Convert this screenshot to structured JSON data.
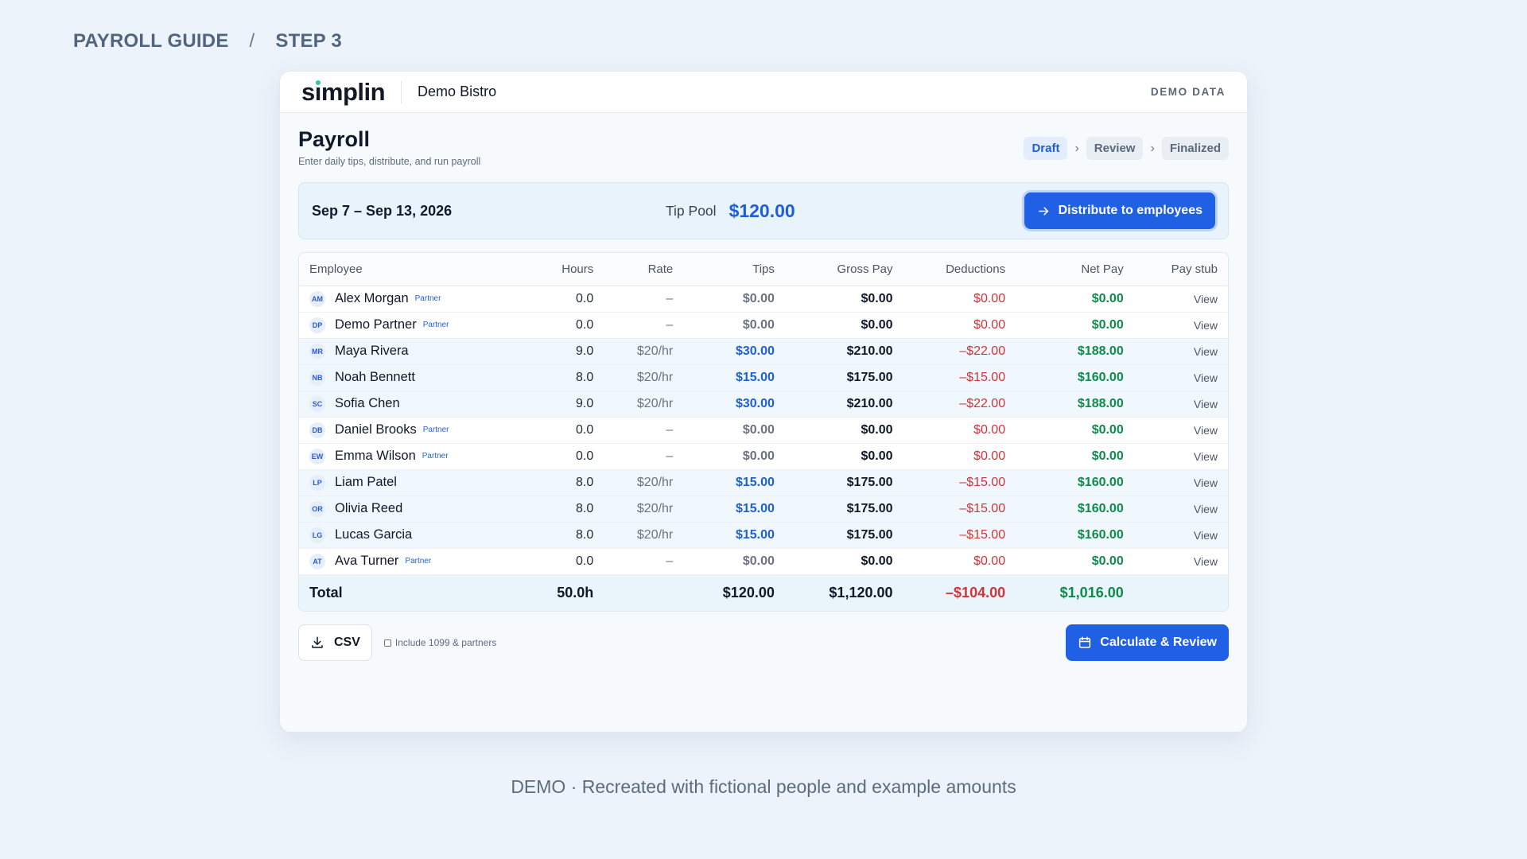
{
  "guide": {
    "label": "PAYROLL GUIDE",
    "separator": "/",
    "step": "STEP 3"
  },
  "topbar": {
    "logo": "simplin",
    "business": "Demo Bistro",
    "tag": "DEMO DATA"
  },
  "page": {
    "title": "Payroll",
    "subtitle": "Enter daily tips, distribute, and run payroll"
  },
  "steps": [
    {
      "label": "Draft",
      "active": true
    },
    {
      "label": "Review",
      "active": false
    },
    {
      "label": "Finalized",
      "active": false
    }
  ],
  "summary": {
    "period": "Sep 7 – Sep 13, 2026",
    "tip_pool_label": "Tip Pool",
    "tip_pool_amount": "$120.00",
    "distribute_label": "Distribute to employees"
  },
  "table": {
    "headers": {
      "employee": "Employee",
      "hours": "Hours",
      "rate": "Rate",
      "tips": "Tips",
      "gross": "Gross Pay",
      "deductions": "Deductions",
      "net": "Net Pay",
      "stub": "Pay stub"
    },
    "rows": [
      {
        "initials": "AM",
        "name": "Alex Morgan",
        "partner": "Partner",
        "hours": "0.0",
        "rate": "–",
        "tips": "$0.00",
        "gross": "$0.00",
        "deductions": "$0.00",
        "net": "$0.00",
        "stub": "View"
      },
      {
        "initials": "DP",
        "name": "Demo Partner",
        "partner": "Partner",
        "hours": "0.0",
        "rate": "–",
        "tips": "$0.00",
        "gross": "$0.00",
        "deductions": "$0.00",
        "net": "$0.00",
        "stub": "View"
      },
      {
        "initials": "MR",
        "name": "Maya Rivera",
        "partner": "",
        "hours": "9.0",
        "rate": "$20/hr",
        "tips": "$30.00",
        "gross": "$210.00",
        "deductions": "–$22.00",
        "net": "$188.00",
        "stub": "View"
      },
      {
        "initials": "NB",
        "name": "Noah Bennett",
        "partner": "",
        "hours": "8.0",
        "rate": "$20/hr",
        "tips": "$15.00",
        "gross": "$175.00",
        "deductions": "–$15.00",
        "net": "$160.00",
        "stub": "View"
      },
      {
        "initials": "SC",
        "name": "Sofia Chen",
        "partner": "",
        "hours": "9.0",
        "rate": "$20/hr",
        "tips": "$30.00",
        "gross": "$210.00",
        "deductions": "–$22.00",
        "net": "$188.00",
        "stub": "View"
      },
      {
        "initials": "DB",
        "name": "Daniel Brooks",
        "partner": "Partner",
        "hours": "0.0",
        "rate": "–",
        "tips": "$0.00",
        "gross": "$0.00",
        "deductions": "$0.00",
        "net": "$0.00",
        "stub": "View"
      },
      {
        "initials": "EW",
        "name": "Emma Wilson",
        "partner": "Partner",
        "hours": "0.0",
        "rate": "–",
        "tips": "$0.00",
        "gross": "$0.00",
        "deductions": "$0.00",
        "net": "$0.00",
        "stub": "View"
      },
      {
        "initials": "LP",
        "name": "Liam Patel",
        "partner": "",
        "hours": "8.0",
        "rate": "$20/hr",
        "tips": "$15.00",
        "gross": "$175.00",
        "deductions": "–$15.00",
        "net": "$160.00",
        "stub": "View"
      },
      {
        "initials": "OR",
        "name": "Olivia Reed",
        "partner": "",
        "hours": "8.0",
        "rate": "$20/hr",
        "tips": "$15.00",
        "gross": "$175.00",
        "deductions": "–$15.00",
        "net": "$160.00",
        "stub": "View"
      },
      {
        "initials": "LG",
        "name": "Lucas Garcia",
        "partner": "",
        "hours": "8.0",
        "rate": "$20/hr",
        "tips": "$15.00",
        "gross": "$175.00",
        "deductions": "–$15.00",
        "net": "$160.00",
        "stub": "View"
      },
      {
        "initials": "AT",
        "name": "Ava Turner",
        "partner": "Partner",
        "hours": "0.0",
        "rate": "–",
        "tips": "$0.00",
        "gross": "$0.00",
        "deductions": "$0.00",
        "net": "$0.00",
        "stub": "View"
      }
    ],
    "total": {
      "label": "Total",
      "hours": "50.0h",
      "tips": "$120.00",
      "gross": "$1,120.00",
      "deductions": "–$104.00",
      "net": "$1,016.00"
    }
  },
  "footer": {
    "csv_label": "CSV",
    "include_label": "Include 1099 & partners",
    "calculate_label": "Calculate & Review"
  },
  "caption": "DEMO · Recreated with fictional people and example amounts",
  "colors": {
    "accent": "#1f60e4",
    "positive": "#0f8a4b",
    "negative": "#d0343a",
    "logo_dot": "#2dc79b"
  },
  "icons": {
    "distribute": "arrow-right-icon",
    "csv": "download-icon",
    "calculate": "calendar-icon",
    "step_separator": "chevron-right-icon"
  }
}
